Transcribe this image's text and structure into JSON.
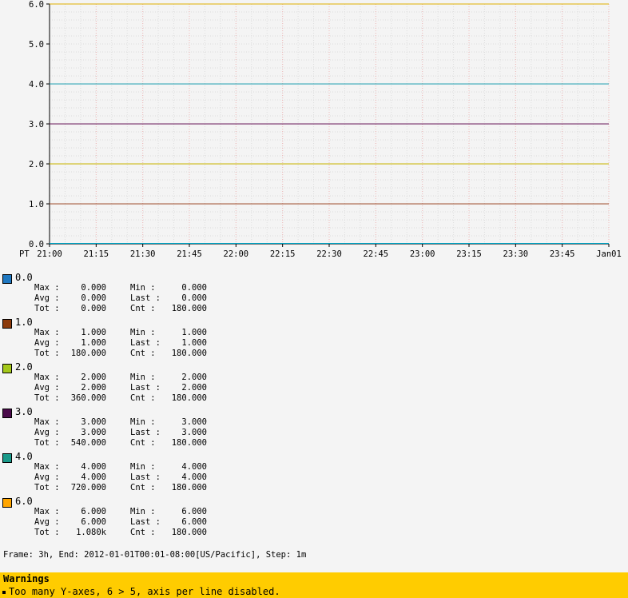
{
  "chart_data": {
    "type": "line",
    "timezone_label": "PT",
    "x_ticks": [
      "21:00",
      "21:15",
      "21:30",
      "21:45",
      "22:00",
      "22:15",
      "22:30",
      "22:45",
      "23:00",
      "23:15",
      "23:30",
      "23:45",
      "Jan01"
    ],
    "y_ticks": [
      "0.0",
      "1.0",
      "2.0",
      "3.0",
      "4.0",
      "5.0",
      "6.0"
    ],
    "ylim": [
      0,
      6
    ],
    "grid": true,
    "series": [
      {
        "name": "0.0",
        "value": 0,
        "color": "#1f78c1",
        "line_color": "#00a0c0"
      },
      {
        "name": "1.0",
        "value": 1,
        "color": "#8c3b0c",
        "line_color": "#a05030"
      },
      {
        "name": "2.0",
        "value": 2,
        "color": "#a4c81a",
        "line_color": "#c8b400"
      },
      {
        "name": "3.0",
        "value": 3,
        "color": "#4a0a4a",
        "line_color": "#6a1a5a"
      },
      {
        "name": "4.0",
        "value": 4,
        "color": "#1a9a8a",
        "line_color": "#20a0b0"
      },
      {
        "name": "6.0",
        "value": 6,
        "color": "#ffa500",
        "line_color": "#e0b000"
      }
    ]
  },
  "legend": [
    {
      "name": "0.0",
      "color": "#1f78c1",
      "max": "0.000",
      "min": "0.000",
      "avg": "0.000",
      "last": "0.000",
      "tot": "0.000",
      "cnt": "180.000"
    },
    {
      "name": "1.0",
      "color": "#8c3b0c",
      "max": "1.000",
      "min": "1.000",
      "avg": "1.000",
      "last": "1.000",
      "tot": "180.000",
      "cnt": "180.000"
    },
    {
      "name": "2.0",
      "color": "#a4c81a",
      "max": "2.000",
      "min": "2.000",
      "avg": "2.000",
      "last": "2.000",
      "tot": "360.000",
      "cnt": "180.000"
    },
    {
      "name": "3.0",
      "color": "#4a0a4a",
      "max": "3.000",
      "min": "3.000",
      "avg": "3.000",
      "last": "3.000",
      "tot": "540.000",
      "cnt": "180.000"
    },
    {
      "name": "4.0",
      "color": "#1a9a8a",
      "max": "4.000",
      "min": "4.000",
      "avg": "4.000",
      "last": "4.000",
      "tot": "720.000",
      "cnt": "180.000"
    },
    {
      "name": "6.0",
      "color": "#ffa500",
      "max": "6.000",
      "min": "6.000",
      "avg": "6.000",
      "last": "6.000",
      "tot": "1.080k",
      "cnt": "180.000"
    }
  ],
  "labels": {
    "max": "Max :",
    "min": "Min  :",
    "avg": "Avg :",
    "last": "Last :",
    "tot": "Tot :",
    "cnt": "Cnt  :"
  },
  "frame_info": "Frame: 3h, End: 2012-01-01T00:01-08:00[US/Pacific], Step: 1m",
  "warnings": {
    "title": "Warnings",
    "items": [
      "Too many Y-axes, 6 > 5, axis per line disabled."
    ]
  }
}
